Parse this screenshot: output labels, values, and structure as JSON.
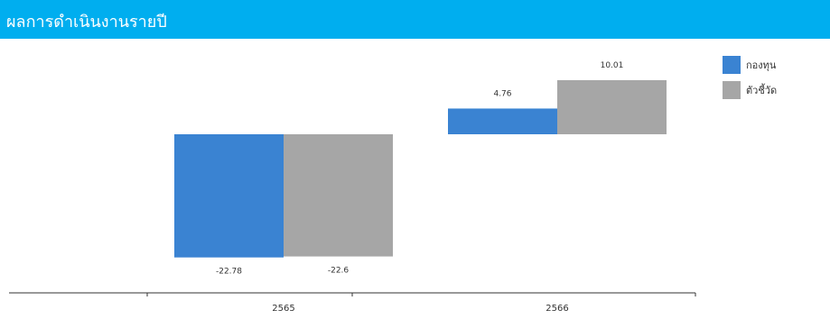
{
  "header": {
    "title": "ผลการดำเนินงานรายปี"
  },
  "colors": {
    "header_bg": "#00aeef",
    "fund": "#3a83d2",
    "benchmark": "#a6a6a6"
  },
  "chart_data": {
    "type": "bar",
    "title": "",
    "xlabel": "",
    "ylabel": "",
    "categories": [
      "2565",
      "2566"
    ],
    "series": [
      {
        "name": "กองทุน",
        "values": [
          -22.78,
          4.76
        ],
        "labels": [
          "-22.78",
          "4.76"
        ],
        "color": "#3a83d2"
      },
      {
        "name": "ตัวชี้วัด",
        "values": [
          -22.6,
          10.01
        ],
        "labels": [
          "-22.6",
          "10.01"
        ],
        "color": "#a6a6a6"
      }
    ],
    "grid": false,
    "legend": "top-right"
  }
}
